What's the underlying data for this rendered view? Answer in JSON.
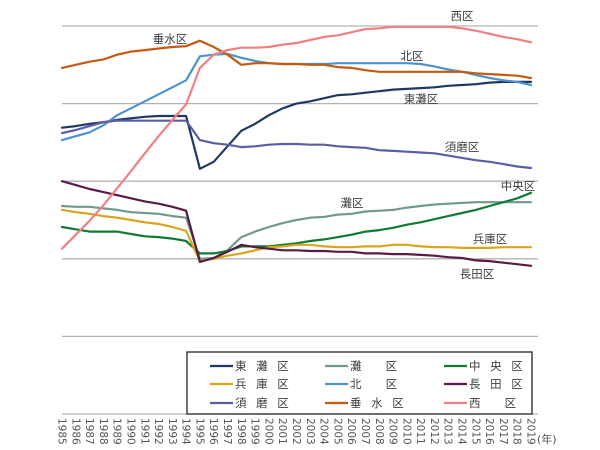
{
  "chart_data": {
    "type": "line",
    "title": "",
    "xlabel": "(年)",
    "ylabel": "",
    "ylim": [
      0,
      5
    ],
    "grid": true,
    "legend_position": "bottom-center",
    "x": [
      "1985",
      "1986",
      "1987",
      "1988",
      "1989",
      "1990",
      "1991",
      "1992",
      "1993",
      "1994",
      "1995",
      "1996",
      "1997",
      "1998",
      "1999",
      "2000",
      "2001",
      "2002",
      "2003",
      "2004",
      "2005",
      "2006",
      "2007",
      "2008",
      "2009",
      "2010",
      "2011",
      "2012",
      "2013",
      "2014",
      "2015",
      "2016",
      "2017",
      "2018",
      "2019"
    ],
    "series": [
      {
        "name": "東灘区",
        "legend_label": "東 灘 区",
        "color": "#1f3864",
        "values": [
          3.69,
          3.71,
          3.74,
          3.76,
          3.79,
          3.81,
          3.83,
          3.84,
          3.84,
          3.84,
          3.16,
          3.25,
          3.45,
          3.65,
          3.74,
          3.85,
          3.94,
          4.0,
          4.03,
          4.07,
          4.11,
          4.12,
          4.14,
          4.16,
          4.18,
          4.19,
          4.2,
          4.21,
          4.23,
          4.24,
          4.25,
          4.27,
          4.28,
          4.28,
          4.28
        ]
      },
      {
        "name": "灘区",
        "legend_label": "灘 　区",
        "color": "#6f9a8d",
        "values": [
          2.68,
          2.67,
          2.67,
          2.65,
          2.63,
          2.6,
          2.59,
          2.58,
          2.55,
          2.53,
          2.0,
          2.01,
          2.11,
          2.28,
          2.35,
          2.41,
          2.46,
          2.5,
          2.53,
          2.54,
          2.57,
          2.58,
          2.61,
          2.62,
          2.63,
          2.66,
          2.68,
          2.7,
          2.71,
          2.72,
          2.73,
          2.73,
          2.73,
          2.73,
          2.73
        ]
      },
      {
        "name": "中央区",
        "legend_label": "中 央 区",
        "color": "#0f7a32",
        "values": [
          2.41,
          2.38,
          2.35,
          2.35,
          2.35,
          2.32,
          2.29,
          2.28,
          2.26,
          2.23,
          2.07,
          2.07,
          2.1,
          2.16,
          2.16,
          2.16,
          2.18,
          2.2,
          2.23,
          2.25,
          2.28,
          2.31,
          2.35,
          2.37,
          2.4,
          2.44,
          2.47,
          2.51,
          2.55,
          2.59,
          2.63,
          2.68,
          2.73,
          2.78,
          2.85
        ]
      },
      {
        "name": "兵庫区",
        "legend_label": "兵 庫 区",
        "color": "#d9a51c",
        "values": [
          2.63,
          2.6,
          2.58,
          2.55,
          2.53,
          2.5,
          2.47,
          2.45,
          2.41,
          2.36,
          1.97,
          2.0,
          2.04,
          2.07,
          2.11,
          2.15,
          2.16,
          2.18,
          2.18,
          2.16,
          2.15,
          2.15,
          2.16,
          2.16,
          2.18,
          2.18,
          2.16,
          2.15,
          2.15,
          2.14,
          2.14,
          2.14,
          2.15,
          2.15,
          2.15
        ]
      },
      {
        "name": "北区",
        "legend_label": "北 　区",
        "color": "#4e93cf",
        "values": [
          3.53,
          3.58,
          3.63,
          3.72,
          3.85,
          3.94,
          4.03,
          4.12,
          4.21,
          4.3,
          4.61,
          4.63,
          4.64,
          4.59,
          4.55,
          4.52,
          4.51,
          4.51,
          4.51,
          4.51,
          4.52,
          4.52,
          4.52,
          4.52,
          4.52,
          4.52,
          4.51,
          4.48,
          4.44,
          4.41,
          4.37,
          4.33,
          4.3,
          4.28,
          4.24
        ]
      },
      {
        "name": "長田区",
        "legend_label": "長 田 区",
        "color": "#5a1a47",
        "values": [
          3.0,
          2.95,
          2.9,
          2.86,
          2.82,
          2.78,
          2.74,
          2.71,
          2.67,
          2.62,
          1.96,
          2.01,
          2.09,
          2.18,
          2.15,
          2.13,
          2.11,
          2.11,
          2.1,
          2.1,
          2.09,
          2.09,
          2.07,
          2.07,
          2.06,
          2.06,
          2.05,
          2.04,
          2.02,
          2.01,
          1.98,
          1.97,
          1.95,
          1.93,
          1.91
        ]
      },
      {
        "name": "須磨区",
        "legend_label": "須 磨 区",
        "color": "#5b5ea6",
        "values": [
          3.62,
          3.66,
          3.71,
          3.76,
          3.78,
          3.78,
          3.78,
          3.78,
          3.78,
          3.78,
          3.53,
          3.49,
          3.47,
          3.44,
          3.45,
          3.47,
          3.48,
          3.48,
          3.47,
          3.47,
          3.45,
          3.44,
          3.43,
          3.4,
          3.39,
          3.38,
          3.37,
          3.36,
          3.33,
          3.3,
          3.27,
          3.25,
          3.22,
          3.19,
          3.17
        ]
      },
      {
        "name": "垂水区",
        "legend_label": "垂 水 区",
        "color": "#c55a11",
        "values": [
          4.46,
          4.5,
          4.54,
          4.57,
          4.63,
          4.67,
          4.69,
          4.71,
          4.73,
          4.74,
          4.81,
          4.73,
          4.63,
          4.5,
          4.52,
          4.52,
          4.51,
          4.51,
          4.5,
          4.5,
          4.47,
          4.46,
          4.43,
          4.41,
          4.41,
          4.41,
          4.41,
          4.41,
          4.41,
          4.41,
          4.39,
          4.38,
          4.37,
          4.36,
          4.33
        ]
      },
      {
        "name": "西区",
        "legend_label": "西 　区",
        "color": "#f08080",
        "values": [
          2.13,
          2.31,
          2.49,
          2.69,
          2.91,
          3.13,
          3.36,
          3.58,
          3.79,
          3.99,
          4.46,
          4.63,
          4.69,
          4.72,
          4.72,
          4.73,
          4.76,
          4.78,
          4.82,
          4.86,
          4.88,
          4.92,
          4.96,
          4.97,
          4.99,
          4.99,
          4.99,
          4.99,
          4.99,
          4.97,
          4.94,
          4.9,
          4.86,
          4.83,
          4.79
        ]
      }
    ],
    "annotations": [
      "西区",
      "垂水区",
      "北区",
      "東灘区",
      "須磨区",
      "中央区",
      "灘区",
      "兵庫区",
      "長田区"
    ]
  }
}
